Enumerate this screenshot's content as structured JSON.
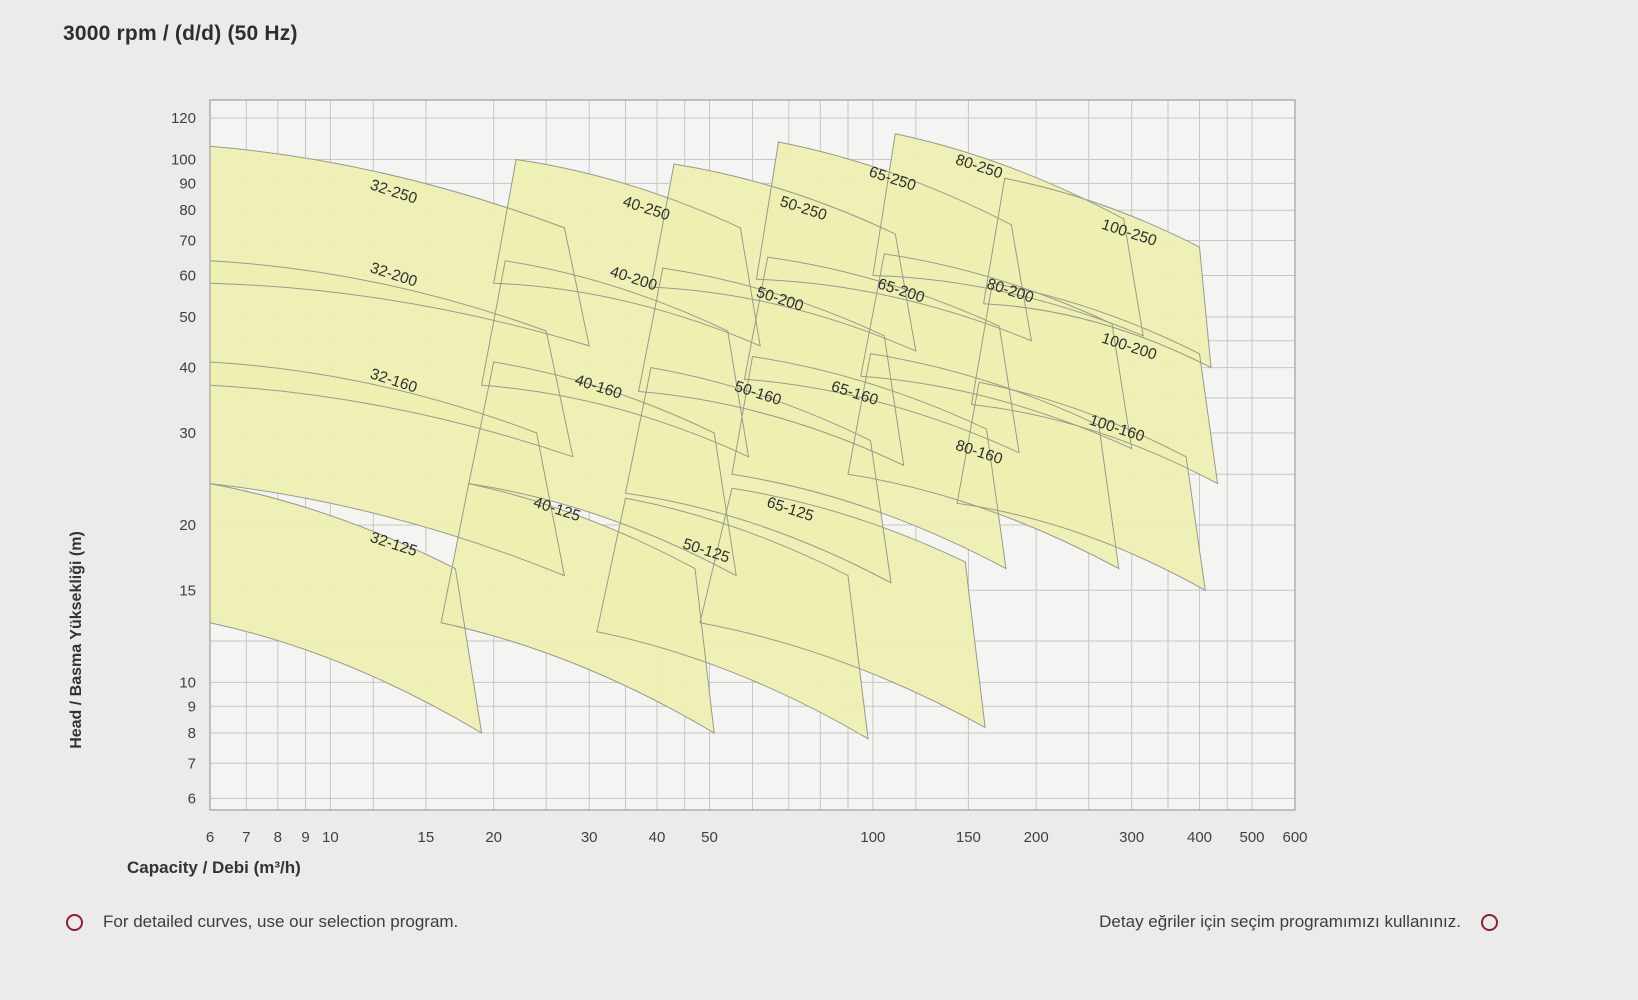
{
  "page": {
    "background": "#ebebeb"
  },
  "title": "3000 rpm / (d/d) (50 Hz)",
  "footer": {
    "left_note": "For detailed curves, use our selection program.",
    "right_note": "Detay eğriler için seçim programımızı kullanınız.",
    "marker_color": "#8b2133"
  },
  "chart_data": {
    "type": "area",
    "title": "3000 rpm / (d/d) (50 Hz)",
    "xlabel": "Capacity / Debi (m³/h)",
    "ylabel": "Head / Basma Yüksekliği (m)",
    "x_scale": "log",
    "y_scale": "log",
    "xlim": [
      6,
      600
    ],
    "ylim": [
      6,
      120
    ],
    "x_ticks": [
      6,
      7,
      8,
      9,
      10,
      15,
      20,
      30,
      40,
      50,
      100,
      150,
      200,
      300,
      400,
      500,
      600
    ],
    "y_ticks": [
      120,
      100,
      90,
      80,
      70,
      60,
      50,
      40,
      30,
      20,
      15,
      10,
      9,
      8,
      7,
      6
    ],
    "x_grid": [
      6,
      7,
      8,
      9,
      10,
      12,
      15,
      20,
      25,
      30,
      35,
      40,
      45,
      50,
      60,
      70,
      80,
      90,
      100,
      120,
      150,
      200,
      250,
      300,
      350,
      400,
      450,
      500,
      600
    ],
    "y_grid": [
      6,
      7,
      8,
      9,
      10,
      12,
      15,
      20,
      25,
      30,
      35,
      40,
      45,
      50,
      60,
      70,
      80,
      90,
      100,
      120
    ],
    "grid_on": true,
    "legend": "none",
    "plot_bg": "#f4f4f2",
    "grid_color": "#c6c6c4",
    "border_color": "#9f9f9d",
    "region_fill": "#edefb1",
    "region_stroke": "#9a9a8d",
    "label_color": "#2e2e2e",
    "tick_color": "#3f3f3f",
    "label_rotation_deg": 18,
    "regions": [
      {
        "name": "32-250",
        "label_at": [
          13,
          85
        ],
        "points": {
          "tl": [
            6,
            106
          ],
          "tr": [
            27,
            74
          ],
          "br": [
            30,
            44
          ],
          "bl": [
            6,
            58
          ]
        }
      },
      {
        "name": "40-250",
        "label_at": [
          38,
          79
        ],
        "points": {
          "tl": [
            22,
            100
          ],
          "tr": [
            57,
            74
          ],
          "br": [
            62,
            44
          ],
          "bl": [
            20,
            58
          ]
        }
      },
      {
        "name": "50-250",
        "label_at": [
          74,
          79
        ],
        "points": {
          "tl": [
            43,
            98
          ],
          "tr": [
            110,
            72
          ],
          "br": [
            120,
            43
          ],
          "bl": [
            39,
            57
          ]
        }
      },
      {
        "name": "65-250",
        "label_at": [
          108,
          90
        ],
        "points": {
          "tl": [
            67,
            108
          ],
          "tr": [
            180,
            75
          ],
          "br": [
            196,
            45
          ],
          "bl": [
            61,
            59
          ]
        }
      },
      {
        "name": "80-250",
        "label_at": [
          156,
          95
        ],
        "points": {
          "tl": [
            110,
            112
          ],
          "tr": [
            290,
            77
          ],
          "br": [
            315,
            46
          ],
          "bl": [
            100,
            60
          ]
        }
      },
      {
        "name": "100-250",
        "label_at": [
          295,
          71
        ],
        "points": {
          "tl": [
            175,
            92
          ],
          "tr": [
            400,
            68
          ],
          "br": [
            420,
            40
          ],
          "bl": [
            160,
            53
          ]
        }
      },
      {
        "name": "32-200",
        "label_at": [
          13,
          59
        ],
        "points": {
          "tl": [
            6,
            64
          ],
          "tr": [
            25,
            47
          ],
          "br": [
            28,
            27
          ],
          "bl": [
            6,
            37
          ]
        }
      },
      {
        "name": "40-200",
        "label_at": [
          36,
          58
        ],
        "points": {
          "tl": [
            21,
            64
          ],
          "tr": [
            54,
            47
          ],
          "br": [
            59,
            27
          ],
          "bl": [
            19,
            37
          ]
        }
      },
      {
        "name": "50-200",
        "label_at": [
          67,
          53
        ],
        "points": {
          "tl": [
            41,
            62
          ],
          "tr": [
            105,
            46
          ],
          "br": [
            114,
            26
          ],
          "bl": [
            37,
            36
          ]
        }
      },
      {
        "name": "65-200",
        "label_at": [
          112,
          55
        ],
        "points": {
          "tl": [
            64,
            65
          ],
          "tr": [
            171,
            48
          ],
          "br": [
            186,
            27.5
          ],
          "bl": [
            58,
            38
          ]
        }
      },
      {
        "name": "80-200",
        "label_at": [
          178,
          55
        ],
        "points": {
          "tl": [
            105,
            66
          ],
          "tr": [
            276,
            48.5
          ],
          "br": [
            300,
            28
          ],
          "bl": [
            95,
            38.5
          ]
        }
      },
      {
        "name": "100-200",
        "label_at": [
          295,
          43
        ],
        "points": {
          "tl": [
            166,
            58
          ],
          "tr": [
            400,
            42.5
          ],
          "br": [
            432,
            24
          ],
          "bl": [
            152,
            34
          ]
        }
      },
      {
        "name": "32-160",
        "label_at": [
          13,
          37
        ],
        "points": {
          "tl": [
            6,
            41
          ],
          "tr": [
            24,
            30
          ],
          "br": [
            27,
            16
          ],
          "bl": [
            6,
            24
          ]
        }
      },
      {
        "name": "40-160",
        "label_at": [
          31,
          36
        ],
        "points": {
          "tl": [
            20,
            41
          ],
          "tr": [
            51,
            30
          ],
          "br": [
            56,
            16
          ],
          "bl": [
            18,
            24
          ]
        }
      },
      {
        "name": "50-160",
        "label_at": [
          61,
          35
        ],
        "points": {
          "tl": [
            39,
            40
          ],
          "tr": [
            99,
            29
          ],
          "br": [
            108,
            15.5
          ],
          "bl": [
            35,
            23
          ]
        }
      },
      {
        "name": "65-160",
        "label_at": [
          92,
          35
        ],
        "points": {
          "tl": [
            60,
            42
          ],
          "tr": [
            162,
            30.5
          ],
          "br": [
            176,
            16.5
          ],
          "bl": [
            55,
            25
          ]
        }
      },
      {
        "name": "80-160",
        "label_at": [
          156,
          27
        ],
        "points": {
          "tl": [
            99,
            42.5
          ],
          "tr": [
            261,
            31
          ],
          "br": [
            284,
            16.5
          ],
          "bl": [
            90,
            25
          ]
        }
      },
      {
        "name": "100-160",
        "label_at": [
          280,
          30
        ],
        "points": {
          "tl": [
            157,
            37.5
          ],
          "tr": [
            378,
            27
          ],
          "br": [
            410,
            15
          ],
          "bl": [
            143,
            22
          ]
        }
      },
      {
        "name": "32-125",
        "label_at": [
          13,
          18
        ],
        "points": {
          "tl": [
            6,
            24
          ],
          "tr": [
            17,
            16.5
          ],
          "br": [
            19,
            8
          ],
          "bl": [
            6,
            13
          ]
        }
      },
      {
        "name": "40-125",
        "label_at": [
          26,
          21
        ],
        "points": {
          "tl": [
            18,
            24
          ],
          "tr": [
            47,
            16.5
          ],
          "br": [
            51,
            8
          ],
          "bl": [
            16,
            13
          ]
        }
      },
      {
        "name": "50-125",
        "label_at": [
          49,
          17.5
        ],
        "points": {
          "tl": [
            35,
            22.5
          ],
          "tr": [
            90,
            16
          ],
          "br": [
            98,
            7.8
          ],
          "bl": [
            31,
            12.5
          ]
        }
      },
      {
        "name": "65-125",
        "label_at": [
          70,
          21
        ],
        "points": {
          "tl": [
            55,
            23.5
          ],
          "tr": [
            148,
            17
          ],
          "br": [
            161,
            8.2
          ],
          "bl": [
            48,
            13
          ]
        }
      }
    ]
  }
}
